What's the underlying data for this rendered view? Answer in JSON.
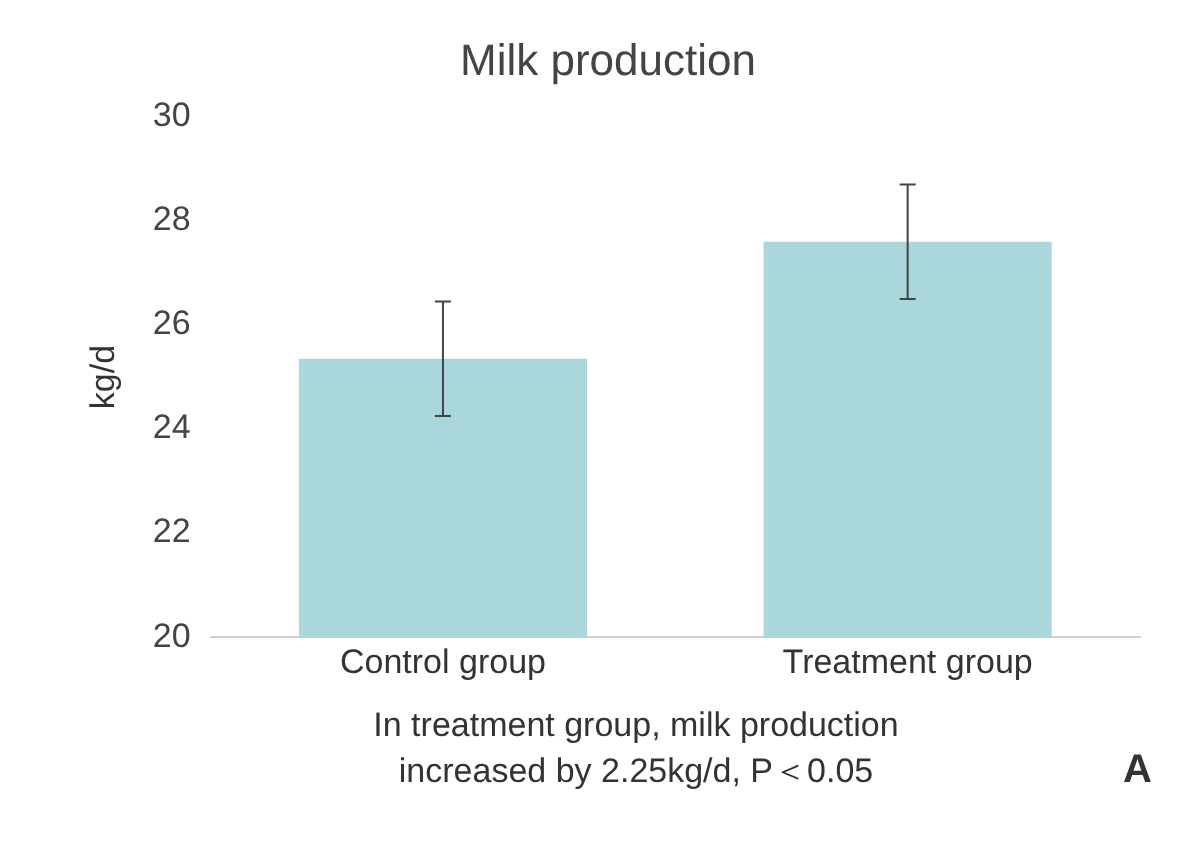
{
  "chart_data": {
    "type": "bar",
    "title": "Milk production",
    "ylabel": "kg/d",
    "categories": [
      "Control group",
      "Treatment group"
    ],
    "values": [
      25.35,
      27.6
    ],
    "errors": [
      1.1,
      1.1
    ],
    "color": "#a9d7db",
    "ylim": [
      20,
      30
    ],
    "yticks": [
      20,
      22,
      24,
      26,
      28,
      30
    ],
    "grid": false,
    "legend": false,
    "annotations": [
      "In treatment group, milk production\nincreased by 2.25kg/d, P＜0.05",
      "A"
    ]
  }
}
